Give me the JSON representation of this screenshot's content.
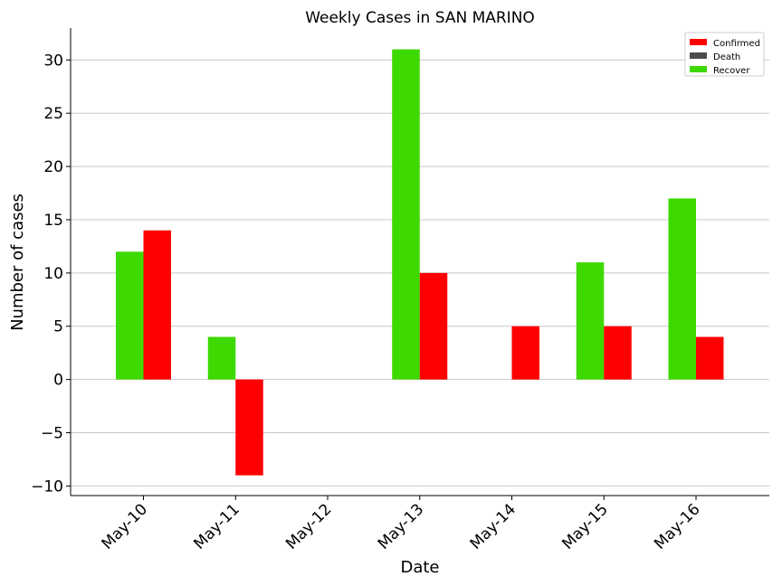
{
  "chart_data": {
    "type": "bar",
    "title": "Weekly Cases in SAN MARINO",
    "xlabel": "Date",
    "ylabel": "Number of cases",
    "categories": [
      "May-10",
      "May-11",
      "May-12",
      "May-13",
      "May-14",
      "May-15",
      "May-16"
    ],
    "series": [
      {
        "name": "Confirmed",
        "color": "#ff0000",
        "values": [
          14,
          -9,
          0,
          10,
          5,
          5,
          4
        ]
      },
      {
        "name": "Death",
        "color": "#4d4d4d",
        "values": [
          0,
          0,
          0,
          0,
          0,
          0,
          0
        ]
      },
      {
        "name": "Recover",
        "color": "#3dd900",
        "values": [
          12,
          4,
          0,
          31,
          0,
          11,
          17
        ]
      }
    ],
    "ylim": [
      -10.9,
      33
    ],
    "yticks": [
      -10,
      -5,
      0,
      5,
      10,
      15,
      20,
      25,
      30
    ],
    "ytick_labels": [
      "−10",
      "−5",
      "0",
      "5",
      "10",
      "15",
      "20",
      "25",
      "30"
    ],
    "grid": "horizontal",
    "legend": "top-right"
  }
}
